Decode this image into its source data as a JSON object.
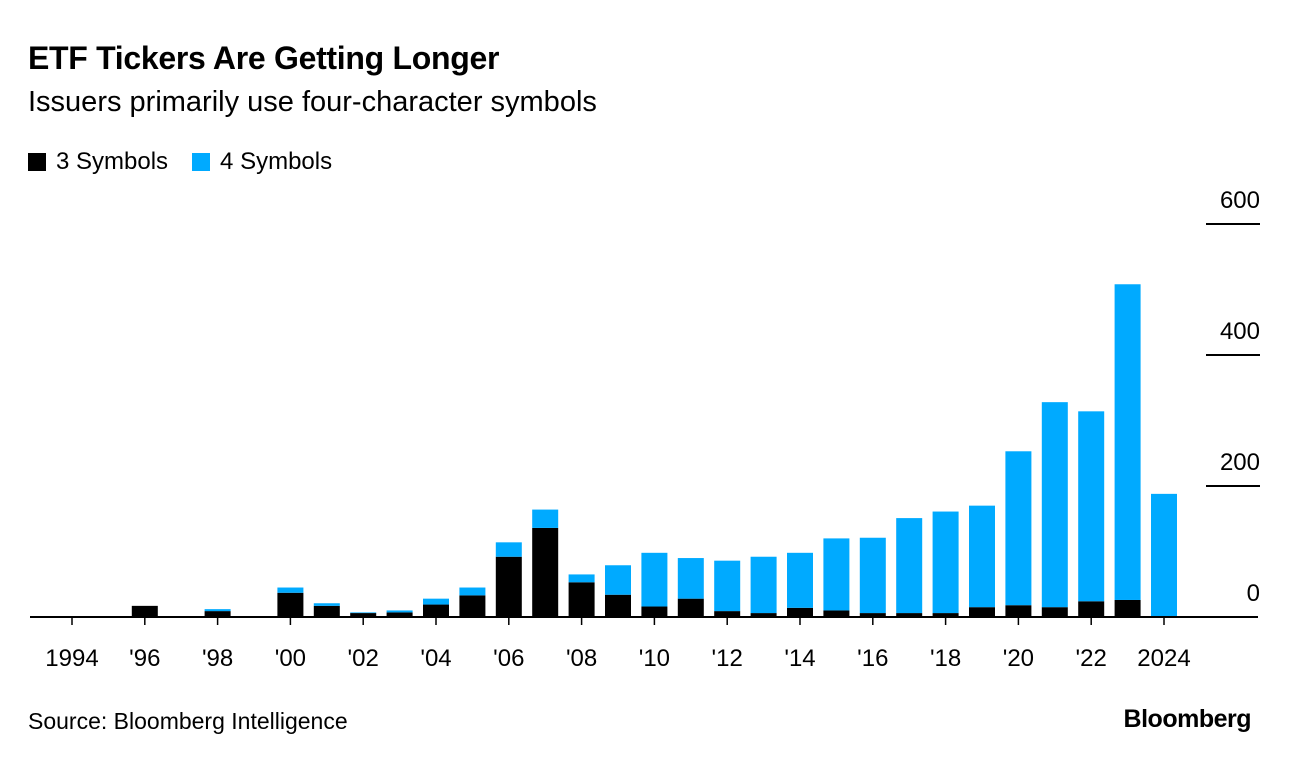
{
  "header": {
    "title": "ETF Tickers Are Getting Longer",
    "subtitle": "Issuers primarily use four-character symbols"
  },
  "footer": {
    "source": "Source: Bloomberg Intelligence",
    "brand": "Bloomberg"
  },
  "colors": {
    "three_symbols": "#000000",
    "four_symbols": "#00aaff",
    "axis": "#000000"
  },
  "chart_data": {
    "type": "bar",
    "stacked": true,
    "title": "ETF Tickers Are Getting Longer",
    "subtitle": "Issuers primarily use four-character symbols",
    "xlabel": "",
    "ylabel": "",
    "ylim": [
      0,
      600
    ],
    "yticks": [
      0,
      200,
      400,
      600
    ],
    "legend_position": "top-left",
    "grid": false,
    "categories": [
      "1994",
      "1995",
      "1996",
      "1997",
      "1998",
      "1999",
      "2000",
      "2001",
      "2002",
      "2003",
      "2004",
      "2005",
      "2006",
      "2007",
      "2008",
      "2009",
      "2010",
      "2011",
      "2012",
      "2013",
      "2014",
      "2015",
      "2016",
      "2017",
      "2018",
      "2019",
      "2020",
      "2021",
      "2022",
      "2023",
      "2024"
    ],
    "tick_labels": [
      "1994",
      "'96",
      "'98",
      "'00",
      "'02",
      "'04",
      "'06",
      "'08",
      "'10",
      "'12",
      "'14",
      "'16",
      "'18",
      "'20",
      "'22",
      "2024"
    ],
    "tick_categories": [
      "1994",
      "1996",
      "1998",
      "2000",
      "2002",
      "2004",
      "2006",
      "2008",
      "2010",
      "2012",
      "2014",
      "2016",
      "2018",
      "2020",
      "2022",
      "2024"
    ],
    "series": [
      {
        "name": "3 Symbols",
        "color": "#000000",
        "values": [
          0,
          0,
          17,
          0,
          9,
          0,
          37,
          17,
          6,
          7,
          19,
          33,
          92,
          136,
          53,
          34,
          16,
          28,
          9,
          6,
          14,
          10,
          6,
          6,
          6,
          15,
          18,
          15,
          24,
          26,
          0
        ]
      },
      {
        "name": "4 Symbols",
        "color": "#00aaff",
        "values": [
          0,
          0,
          0,
          0,
          3,
          0,
          8,
          4,
          1,
          3,
          9,
          12,
          22,
          28,
          12,
          45,
          82,
          62,
          77,
          86,
          84,
          110,
          115,
          145,
          155,
          155,
          235,
          313,
          290,
          482,
          188
        ]
      }
    ]
  }
}
